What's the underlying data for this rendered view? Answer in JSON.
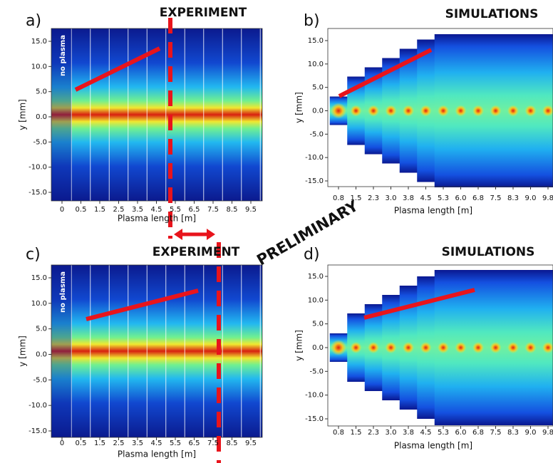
{
  "panels": [
    {
      "letter": "a)",
      "title": "EXPERIMENT",
      "inset": "no plasma",
      "ylabel": "y [mm]",
      "xlabel": "Plasma length [m]",
      "yticks": [
        "15.0",
        "10.0",
        "5.0",
        "0.0",
        "-5.0",
        "-10.0",
        "-15.0"
      ],
      "xticks": [
        "0",
        "0.5",
        "1.5",
        "2.5",
        "3.5",
        "4.5",
        "5.5",
        "6.5",
        "7.5",
        "8.5",
        "9.5"
      ]
    },
    {
      "letter": "b)",
      "title": "SIMULATIONS",
      "ylabel": "y [mm]",
      "xlabel": "Plasma length [m]",
      "yticks": [
        "15.0",
        "10.0",
        "5.0",
        "0.0",
        "-5.0",
        "-10.0",
        "-15.0"
      ],
      "xticks": [
        "0.8",
        "1.5",
        "2.3",
        "3.0",
        "3.8",
        "4.5",
        "5.3",
        "6.0",
        "6.8",
        "7.5",
        "8.3",
        "9.0",
        "9.8"
      ]
    },
    {
      "letter": "c)",
      "title": "EXPERIMENT",
      "inset": "no plasma",
      "ylabel": "y [mm]",
      "xlabel": "Plasma length [m]",
      "yticks": [
        "15.0",
        "10.0",
        "5.0",
        "0.0",
        "-5.0",
        "-10.0",
        "-15.0"
      ],
      "xticks": [
        "0",
        "0.5",
        "1.5",
        "2.5",
        "3.5",
        "4.5",
        "5.5",
        "6.5",
        "7.5",
        "8.5",
        "9.5"
      ]
    },
    {
      "letter": "d)",
      "title": "SIMULATIONS",
      "ylabel": "y [mm]",
      "xlabel": "Plasma length [m]",
      "yticks": [
        "15.0",
        "10.0",
        "5.0",
        "0.0",
        "-5.0",
        "-10.0",
        "-15.0"
      ],
      "xticks": [
        "0.8",
        "1.5",
        "2.3",
        "3.0",
        "3.8",
        "4.5",
        "5.3",
        "6.0",
        "6.8",
        "7.5",
        "8.3",
        "9.0",
        "9.8"
      ]
    }
  ],
  "watermark": "PRELIMINARY"
}
